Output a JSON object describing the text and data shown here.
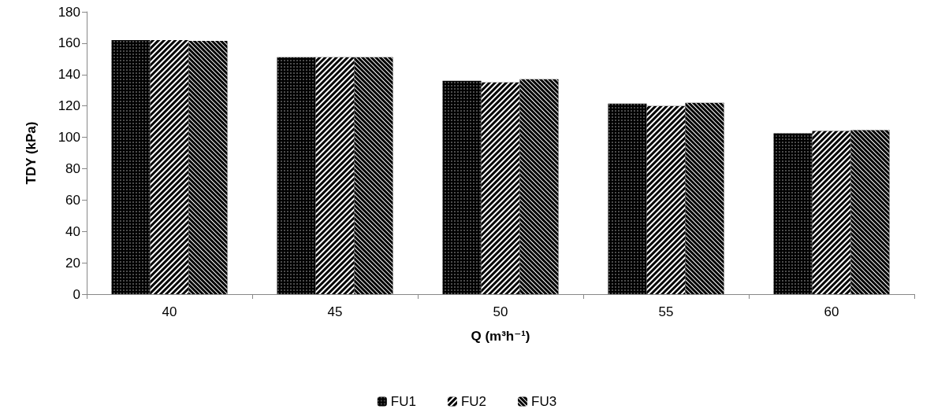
{
  "chart_data": {
    "type": "bar",
    "xlabel": "Q (m³h⁻¹)",
    "ylabel": "TDY (kPa)",
    "categories": [
      "40",
      "45",
      "50",
      "55",
      "60"
    ],
    "series": [
      {
        "name": "FU1",
        "color": "#000000",
        "values": [
          162,
          151,
          136,
          121.5,
          102.5
        ]
      },
      {
        "name": "FU2",
        "color": "#000000",
        "values": [
          162,
          151,
          135,
          120,
          104
        ]
      },
      {
        "name": "FU3",
        "color": "#000000",
        "values": [
          161.5,
          151,
          137,
          122,
          104.5
        ]
      }
    ],
    "ylim": [
      0,
      180
    ],
    "yticks": [
      0,
      20,
      40,
      60,
      80,
      100,
      120,
      140,
      160,
      180
    ],
    "grid": false,
    "legend": "bottom"
  }
}
